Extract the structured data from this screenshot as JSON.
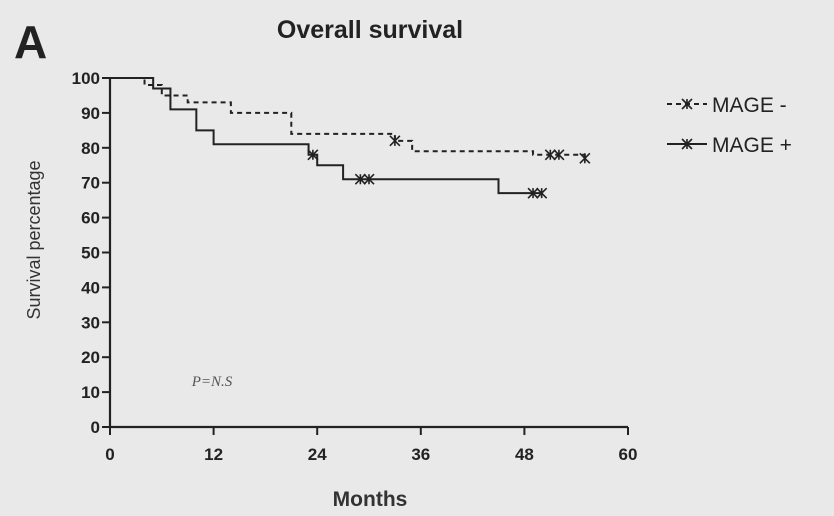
{
  "panel_letter": "A",
  "chart_data": {
    "type": "line",
    "title": "Overall survival",
    "xlabel": "Months",
    "ylabel": "Survival percentage",
    "xlim": [
      0,
      60
    ],
    "ylim": [
      0,
      100
    ],
    "xticks": [
      0,
      12,
      24,
      36,
      48,
      60
    ],
    "yticks": [
      0,
      10,
      20,
      30,
      40,
      50,
      60,
      70,
      80,
      90,
      100
    ],
    "grid": false,
    "legend_position": "right",
    "annotation": "P=N.S",
    "series": [
      {
        "name": "MAGE -",
        "style": "dashed",
        "steps": [
          [
            0,
            100
          ],
          [
            4,
            98
          ],
          [
            6,
            95
          ],
          [
            9,
            93
          ],
          [
            14,
            90
          ],
          [
            21,
            84
          ],
          [
            33,
            82
          ],
          [
            35,
            79
          ],
          [
            49,
            78
          ],
          [
            55,
            77
          ]
        ],
        "censored": [
          [
            33,
            82
          ],
          [
            51,
            78
          ],
          [
            52,
            78
          ],
          [
            55,
            77
          ]
        ]
      },
      {
        "name": "MAGE +",
        "style": "solid",
        "steps": [
          [
            0,
            100
          ],
          [
            5,
            97
          ],
          [
            7,
            91
          ],
          [
            10,
            85
          ],
          [
            12,
            81
          ],
          [
            23,
            78
          ],
          [
            24,
            75
          ],
          [
            27,
            71
          ],
          [
            45,
            67
          ],
          [
            50,
            67
          ]
        ],
        "censored": [
          [
            23.5,
            78
          ],
          [
            29,
            71
          ],
          [
            30,
            71
          ],
          [
            49,
            67
          ],
          [
            50,
            67
          ]
        ]
      }
    ]
  }
}
